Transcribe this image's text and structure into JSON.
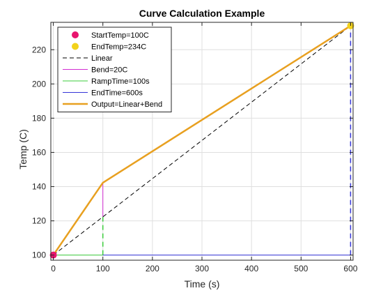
{
  "chart_data": {
    "type": "line",
    "title": "Curve Calculation Example",
    "xlabel": "Time (s)",
    "ylabel": "Temp (C)",
    "xlim": [
      -5,
      605
    ],
    "ylim": [
      97,
      236
    ],
    "xticks": [
      0,
      100,
      200,
      300,
      400,
      500,
      600
    ],
    "yticks": [
      100,
      120,
      140,
      160,
      180,
      200,
      220
    ],
    "grid": true,
    "legend_position": "top-left",
    "series": [
      {
        "name": "StartTemp=100C",
        "kind": "marker",
        "color": "#e8146e",
        "points": [
          [
            0,
            100
          ]
        ]
      },
      {
        "name": "EndTemp=234C",
        "kind": "marker",
        "color": "#f2d21b",
        "points": [
          [
            600,
            234
          ]
        ]
      },
      {
        "name": "Linear",
        "kind": "line",
        "style": "dashed",
        "color": "#000000",
        "points": [
          [
            0,
            100
          ],
          [
            600,
            234
          ]
        ]
      },
      {
        "name": "Bend=20C",
        "kind": "line",
        "style": "solid",
        "color": "#d22cd2",
        "points": [
          [
            100,
            122.3
          ],
          [
            100,
            142.3
          ]
        ]
      },
      {
        "name": "RampTime=100s",
        "kind": "line",
        "style": "solid",
        "color": "#3ccc3c",
        "points": [
          [
            0,
            100
          ],
          [
            100,
            100
          ]
        ]
      },
      {
        "name": "EndTime=600s",
        "kind": "line",
        "style": "solid",
        "color": "#3535d8",
        "points": [
          [
            100,
            100
          ],
          [
            600,
            100
          ]
        ]
      },
      {
        "name": "Output=Linear+Bend",
        "kind": "line",
        "style": "solid",
        "color": "#e8a020",
        "points": [
          [
            0,
            100
          ],
          [
            100,
            142.3
          ],
          [
            600,
            234
          ]
        ]
      }
    ],
    "guides": [
      {
        "color": "#3ccc3c",
        "style": "dashed",
        "points": [
          [
            100,
            100
          ],
          [
            100,
            122.3
          ]
        ]
      },
      {
        "color": "#3535d8",
        "style": "dashed",
        "points": [
          [
            600,
            100
          ],
          [
            600,
            234
          ]
        ]
      }
    ]
  }
}
